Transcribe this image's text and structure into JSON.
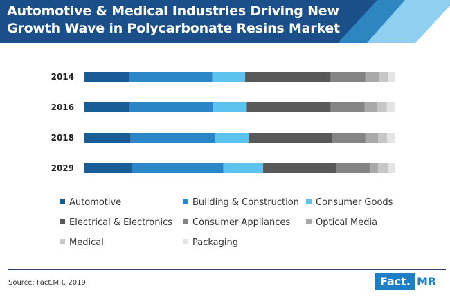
{
  "header": {
    "title_line1": "Automotive & Medical Industries Driving New",
    "title_line2": "Growth Wave in Polycarbonate Resins Market"
  },
  "colors": {
    "header_dark": "#1a4f8a",
    "header_mid": "#2e86c1",
    "header_light": "#8fd0f0"
  },
  "chart_data": {
    "type": "bar",
    "orientation": "horizontal",
    "stacked": true,
    "percent_stacked": true,
    "title": "Automotive & Medical Industries Driving New Growth Wave in Polycarbonate Resins Market",
    "xlabel": "",
    "ylabel": "",
    "xlim": [
      0,
      100
    ],
    "categories": [
      "2014",
      "2016",
      "2018",
      "2029"
    ],
    "series": [
      {
        "name": "Automotive",
        "color": "#1a5c96",
        "values": [
          14.6,
          14.6,
          14.9,
          15.4
        ]
      },
      {
        "name": "Building & Construction",
        "color": "#2a86c6",
        "values": [
          26.6,
          26.8,
          27.2,
          29.4
        ]
      },
      {
        "name": "Consumer Goods",
        "color": "#5cc3ee",
        "values": [
          10.6,
          10.9,
          11.0,
          12.8
        ]
      },
      {
        "name": "Electrical & Electronics",
        "color": "#595959",
        "values": [
          27.6,
          27.1,
          26.6,
          23.6
        ]
      },
      {
        "name": "Consumer Appliances",
        "color": "#848484",
        "values": [
          11.2,
          10.9,
          10.9,
          11.0
        ]
      },
      {
        "name": "Optical Media",
        "color": "#a9a9a9",
        "values": [
          4.3,
          4.2,
          4.1,
          2.5
        ]
      },
      {
        "name": "Medical",
        "color": "#c7c7c7",
        "values": [
          3.1,
          3.0,
          2.9,
          3.3
        ]
      },
      {
        "name": "Packaging",
        "color": "#e4e4e4",
        "values": [
          2.0,
          2.5,
          2.4,
          2.0
        ]
      }
    ],
    "legend_position": "bottom",
    "grid": false
  },
  "footer": {
    "source": "Source: Fact.MR, 2019",
    "logo_box": "Fact.",
    "logo_rest": "MR"
  }
}
